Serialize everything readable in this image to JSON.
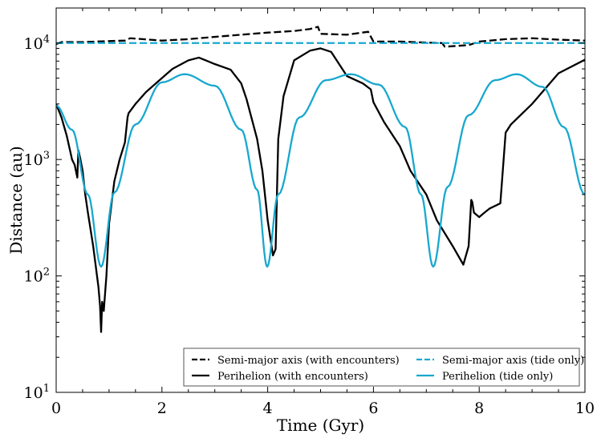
{
  "chart_data": {
    "type": "line",
    "title": "",
    "xlabel": "Time (Gyr)",
    "ylabel": "Distance (au)",
    "x_scale": "linear",
    "y_scale": "log",
    "xlim": [
      0,
      10
    ],
    "ylim": [
      10,
      20000
    ],
    "grid": false,
    "legend_position": "lower-right",
    "legend_columns": 2,
    "x_ticks": [
      0,
      2,
      4,
      6,
      8,
      10
    ],
    "x_tick_labels": [
      "0",
      "2",
      "4",
      "6",
      "8",
      "10"
    ],
    "y_ticks": [
      10,
      100,
      1000,
      10000
    ],
    "y_tick_labels": [
      {
        "base": "10",
        "exp": "1"
      },
      {
        "base": "10",
        "exp": "2"
      },
      {
        "base": "10",
        "exp": "3"
      },
      {
        "base": "10",
        "exp": "4"
      }
    ],
    "series": [
      {
        "name": "Semi-major axis (with encounters)",
        "color": "#000000",
        "dash": "dashed",
        "x": [
          0,
          0.1,
          0.5,
          1.0,
          1.3,
          1.4,
          2.0,
          2.5,
          3.0,
          3.5,
          4.0,
          4.5,
          4.8,
          4.95,
          5.0,
          5.5,
          5.9,
          6.0,
          6.5,
          7.0,
          7.3,
          7.35,
          7.8,
          8.0,
          8.5,
          9.0,
          9.5,
          10.0
        ],
        "y": [
          9800,
          10200,
          10200,
          10400,
          10500,
          11000,
          10500,
          10800,
          11300,
          11800,
          12300,
          12700,
          13200,
          13800,
          12000,
          11800,
          12500,
          10300,
          10300,
          10100,
          10000,
          9300,
          9600,
          10300,
          10800,
          11000,
          10700,
          10500
        ]
      },
      {
        "name": "Semi-major axis (tide only)",
        "color": "#17a8cf",
        "dash": "dashed",
        "x": [
          0,
          10
        ],
        "y": [
          10000,
          10000
        ]
      },
      {
        "name": "Perihelion (with encounters)",
        "color": "#000000",
        "dash": "solid",
        "x": [
          0,
          0.1,
          0.2,
          0.3,
          0.35,
          0.4,
          0.42,
          0.45,
          0.5,
          0.55,
          0.6,
          0.7,
          0.8,
          0.83,
          0.85,
          0.87,
          0.9,
          0.95,
          1.0,
          1.1,
          1.2,
          1.3,
          1.35,
          1.37,
          1.5,
          1.7,
          2.0,
          2.2,
          2.5,
          2.7,
          3.0,
          3.3,
          3.5,
          3.6,
          3.8,
          3.9,
          4.0,
          4.1,
          4.15,
          4.2,
          4.3,
          4.5,
          4.8,
          5.0,
          5.2,
          5.5,
          5.8,
          5.95,
          6.0,
          6.2,
          6.5,
          6.7,
          7.0,
          7.2,
          7.5,
          7.7,
          7.8,
          7.82,
          7.85,
          7.87,
          7.9,
          8.0,
          8.1,
          8.2,
          8.4,
          8.5,
          8.6,
          9.0,
          9.5,
          10.0
        ],
        "y": [
          3000,
          2300,
          1600,
          1000,
          900,
          700,
          1200,
          1050,
          800,
          500,
          350,
          180,
          80,
          55,
          33,
          60,
          50,
          100,
          280,
          650,
          1000,
          1400,
          2300,
          2500,
          3000,
          3800,
          5000,
          6000,
          7100,
          7500,
          6600,
          5900,
          4500,
          3300,
          1500,
          800,
          300,
          150,
          170,
          1500,
          3500,
          7100,
          8600,
          9000,
          8400,
          5200,
          4500,
          4000,
          3100,
          2100,
          1300,
          800,
          500,
          300,
          180,
          125,
          180,
          260,
          450,
          430,
          350,
          320,
          350,
          380,
          420,
          1700,
          2000,
          3000,
          5500,
          7200
        ]
      },
      {
        "name": "Perihelion (tide only)",
        "color": "#17a8cf",
        "dash": "solid",
        "period": 3.14,
        "x": [
          0,
          0.3,
          0.6,
          0.85,
          1.1,
          1.5,
          2.0,
          2.43,
          3.0,
          3.5,
          3.8,
          3.99,
          4.2,
          4.6,
          5.1,
          5.57,
          6.1,
          6.6,
          6.9,
          7.13,
          7.4,
          7.8,
          8.3,
          8.71,
          9.2,
          9.6,
          10.0
        ],
        "y": [
          2900,
          1800,
          500,
          120,
          520,
          2000,
          4600,
          5400,
          4300,
          1800,
          550,
          120,
          500,
          2300,
          4800,
          5400,
          4400,
          1900,
          500,
          120,
          580,
          2400,
          4800,
          5400,
          4200,
          1900,
          500
        ]
      }
    ]
  }
}
